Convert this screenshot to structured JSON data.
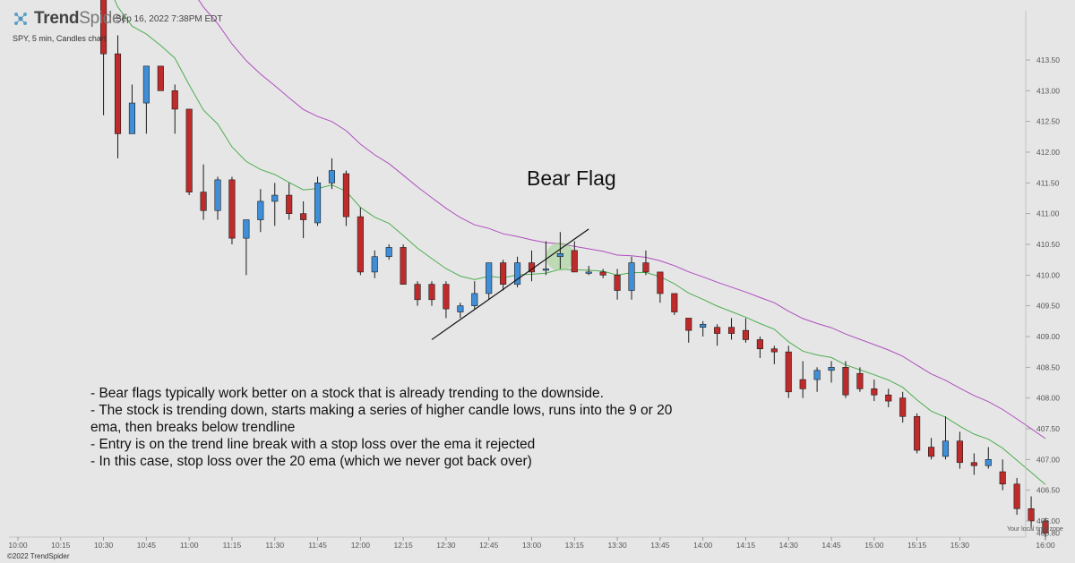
{
  "header": {
    "brand_strong": "Trend",
    "brand_light": "Spider",
    "timestamp": "Sep 16, 2022 7:38PM EDT",
    "subtitle": "SPY, 5 min, Candles chart"
  },
  "footer": {
    "copyright": "©2022 TrendSpider",
    "timezone_note": "Your local time zone"
  },
  "annotation": {
    "title": "Bear Flag",
    "lines": [
      "- Bear flags typically work better on a stock that is already trending to the downside.",
      "- The stock is trending down, starts making a series of higher candle lows, runs into the 9 or 20 ema, then breaks below trendline",
      "- Entry is on the trend line break with a stop loss over the ema it rejected",
      "- In this case, stop loss over the 20 ema (which we never got back over)"
    ]
  },
  "colors": {
    "background": "#e6e6e6",
    "bull": "#3f8fd8",
    "bear": "#bf2b2b",
    "ema9": "#4caf50",
    "ema20": "#b04ec0",
    "trendline": "#111111",
    "highlight": "#9ccf8a"
  },
  "chart_data": {
    "type": "candlestick",
    "symbol": "SPY",
    "interval": "5 min",
    "ylim": [
      405.6,
      414.0
    ],
    "y_ticks": [
      "406.00",
      "406.50",
      "407.00",
      "407.50",
      "408.00",
      "408.50",
      "409.00",
      "409.50",
      "410.00",
      "410.50",
      "411.00",
      "411.50",
      "412.00",
      "412.50",
      "413.00",
      "413.50"
    ],
    "y_last_label": "405.80",
    "x_ticks": [
      "10:00",
      "10:15",
      "10:30",
      "10:45",
      "11:00",
      "11:15",
      "11:30",
      "11:45",
      "12:00",
      "12:15",
      "12:30",
      "12:45",
      "13:00",
      "13:15",
      "13:30",
      "13:45",
      "14:00",
      "14:15",
      "14:30",
      "14:45",
      "15:00",
      "15:15",
      "15:30",
      "16:00"
    ],
    "grid": false,
    "candles": [
      {
        "t": "10:30",
        "o": 414.8,
        "h": 415.3,
        "l": 412.6,
        "c": 413.6
      },
      {
        "t": "10:35",
        "o": 413.6,
        "h": 413.9,
        "l": 411.9,
        "c": 412.3
      },
      {
        "t": "10:40",
        "o": 412.3,
        "h": 413.1,
        "l": 412.3,
        "c": 412.8
      },
      {
        "t": "10:45",
        "o": 412.8,
        "h": 413.4,
        "l": 412.3,
        "c": 413.4
      },
      {
        "t": "10:50",
        "o": 413.4,
        "h": 413.4,
        "l": 413.0,
        "c": 413.0
      },
      {
        "t": "10:55",
        "o": 413.0,
        "h": 413.1,
        "l": 412.3,
        "c": 412.7
      },
      {
        "t": "11:00",
        "o": 412.7,
        "h": 412.7,
        "l": 411.3,
        "c": 411.35
      },
      {
        "t": "11:05",
        "o": 411.35,
        "h": 411.8,
        "l": 410.9,
        "c": 411.05
      },
      {
        "t": "11:10",
        "o": 411.05,
        "h": 411.6,
        "l": 410.9,
        "c": 411.55
      },
      {
        "t": "11:15",
        "o": 411.55,
        "h": 411.6,
        "l": 410.5,
        "c": 410.6
      },
      {
        "t": "11:20",
        "o": 410.6,
        "h": 410.9,
        "l": 410.0,
        "c": 410.9
      },
      {
        "t": "11:25",
        "o": 410.9,
        "h": 411.4,
        "l": 410.7,
        "c": 411.2
      },
      {
        "t": "11:30",
        "o": 411.2,
        "h": 411.5,
        "l": 410.8,
        "c": 411.3
      },
      {
        "t": "11:35",
        "o": 411.3,
        "h": 411.5,
        "l": 410.9,
        "c": 411.0
      },
      {
        "t": "11:40",
        "o": 411.0,
        "h": 411.2,
        "l": 410.6,
        "c": 410.9
      },
      {
        "t": "11:45",
        "o": 410.85,
        "h": 411.6,
        "l": 410.8,
        "c": 411.5
      },
      {
        "t": "11:50",
        "o": 411.5,
        "h": 411.9,
        "l": 411.4,
        "c": 411.7
      },
      {
        "t": "11:55",
        "o": 411.65,
        "h": 411.7,
        "l": 410.8,
        "c": 410.95
      },
      {
        "t": "12:00",
        "o": 410.95,
        "h": 411.1,
        "l": 410.0,
        "c": 410.05
      },
      {
        "t": "12:05",
        "o": 410.05,
        "h": 410.4,
        "l": 409.95,
        "c": 410.3
      },
      {
        "t": "12:10",
        "o": 410.3,
        "h": 410.5,
        "l": 410.25,
        "c": 410.45
      },
      {
        "t": "12:15",
        "o": 410.45,
        "h": 410.5,
        "l": 409.85,
        "c": 409.85
      },
      {
        "t": "12:20",
        "o": 409.85,
        "h": 409.9,
        "l": 409.5,
        "c": 409.6
      },
      {
        "t": "12:25",
        "o": 409.85,
        "h": 409.9,
        "l": 409.5,
        "c": 409.6
      },
      {
        "t": "12:30",
        "o": 409.85,
        "h": 409.9,
        "l": 409.3,
        "c": 409.45
      },
      {
        "t": "12:35",
        "o": 409.4,
        "h": 409.55,
        "l": 409.3,
        "c": 409.5
      },
      {
        "t": "12:40",
        "o": 409.5,
        "h": 409.9,
        "l": 409.45,
        "c": 409.7
      },
      {
        "t": "12:45",
        "o": 409.7,
        "h": 410.2,
        "l": 409.6,
        "c": 410.2
      },
      {
        "t": "12:50",
        "o": 410.2,
        "h": 410.25,
        "l": 409.75,
        "c": 409.85
      },
      {
        "t": "12:55",
        "o": 409.85,
        "h": 410.3,
        "l": 409.8,
        "c": 410.2
      },
      {
        "t": "13:00",
        "o": 410.2,
        "h": 410.4,
        "l": 409.9,
        "c": 410.05
      },
      {
        "t": "13:05",
        "o": 410.1,
        "h": 410.55,
        "l": 410.0,
        "c": 410.1
      },
      {
        "t": "13:10",
        "o": 410.3,
        "h": 410.7,
        "l": 410.1,
        "c": 410.35
      },
      {
        "t": "13:15",
        "o": 410.4,
        "h": 410.55,
        "l": 410.05,
        "c": 410.05
      },
      {
        "t": "13:20",
        "o": 410.05,
        "h": 410.15,
        "l": 410.0,
        "c": 410.05
      },
      {
        "t": "13:25",
        "o": 410.05,
        "h": 410.1,
        "l": 409.95,
        "c": 410.0
      },
      {
        "t": "13:30",
        "o": 410.0,
        "h": 410.1,
        "l": 409.6,
        "c": 409.75
      },
      {
        "t": "13:35",
        "o": 409.75,
        "h": 410.3,
        "l": 409.6,
        "c": 410.2
      },
      {
        "t": "13:40",
        "o": 410.2,
        "h": 410.4,
        "l": 410.0,
        "c": 410.05
      },
      {
        "t": "13:45",
        "o": 410.05,
        "h": 410.05,
        "l": 409.55,
        "c": 409.7
      },
      {
        "t": "13:50",
        "o": 409.7,
        "h": 409.7,
        "l": 409.35,
        "c": 409.4
      },
      {
        "t": "13:55",
        "o": 409.3,
        "h": 409.3,
        "l": 408.9,
        "c": 409.1
      },
      {
        "t": "14:00",
        "o": 409.15,
        "h": 409.25,
        "l": 409.0,
        "c": 409.2
      },
      {
        "t": "14:05",
        "o": 409.15,
        "h": 409.2,
        "l": 408.85,
        "c": 409.05
      },
      {
        "t": "14:10",
        "o": 409.15,
        "h": 409.3,
        "l": 408.95,
        "c": 409.05
      },
      {
        "t": "14:15",
        "o": 409.1,
        "h": 409.3,
        "l": 408.9,
        "c": 408.95
      },
      {
        "t": "14:20",
        "o": 408.95,
        "h": 409.0,
        "l": 408.65,
        "c": 408.8
      },
      {
        "t": "14:25",
        "o": 408.8,
        "h": 408.85,
        "l": 408.55,
        "c": 408.75
      },
      {
        "t": "14:30",
        "o": 408.75,
        "h": 408.85,
        "l": 408.0,
        "c": 408.1
      },
      {
        "t": "14:35",
        "o": 408.3,
        "h": 408.6,
        "l": 408.0,
        "c": 408.15
      },
      {
        "t": "14:40",
        "o": 408.3,
        "h": 408.5,
        "l": 408.1,
        "c": 408.45
      },
      {
        "t": "14:45",
        "o": 408.45,
        "h": 408.6,
        "l": 408.25,
        "c": 408.5
      },
      {
        "t": "14:50",
        "o": 408.5,
        "h": 408.6,
        "l": 408.0,
        "c": 408.05
      },
      {
        "t": "14:55",
        "o": 408.4,
        "h": 408.5,
        "l": 408.1,
        "c": 408.15
      },
      {
        "t": "15:00",
        "o": 408.15,
        "h": 408.3,
        "l": 407.95,
        "c": 408.05
      },
      {
        "t": "15:05",
        "o": 408.05,
        "h": 408.15,
        "l": 407.85,
        "c": 407.95
      },
      {
        "t": "15:10",
        "o": 408.0,
        "h": 408.1,
        "l": 407.6,
        "c": 407.7
      },
      {
        "t": "15:15",
        "o": 407.7,
        "h": 407.75,
        "l": 407.1,
        "c": 407.15
      },
      {
        "t": "15:20",
        "o": 407.2,
        "h": 407.35,
        "l": 407.0,
        "c": 407.05
      },
      {
        "t": "15:25",
        "o": 407.05,
        "h": 407.7,
        "l": 407.0,
        "c": 407.3
      },
      {
        "t": "15:30",
        "o": 407.3,
        "h": 407.45,
        "l": 406.85,
        "c": 406.95
      },
      {
        "t": "15:35",
        "o": 406.95,
        "h": 407.1,
        "l": 406.75,
        "c": 406.9
      },
      {
        "t": "15:40",
        "o": 406.9,
        "h": 407.2,
        "l": 406.85,
        "c": 407.0
      },
      {
        "t": "15:45",
        "o": 406.8,
        "h": 407.0,
        "l": 406.5,
        "c": 406.6
      },
      {
        "t": "15:50",
        "o": 406.6,
        "h": 406.7,
        "l": 406.1,
        "c": 406.2
      },
      {
        "t": "15:55",
        "o": 406.2,
        "h": 406.4,
        "l": 405.9,
        "c": 406.0
      },
      {
        "t": "16:00",
        "o": 406.0,
        "h": 406.05,
        "l": 405.7,
        "c": 405.8
      }
    ]
  }
}
